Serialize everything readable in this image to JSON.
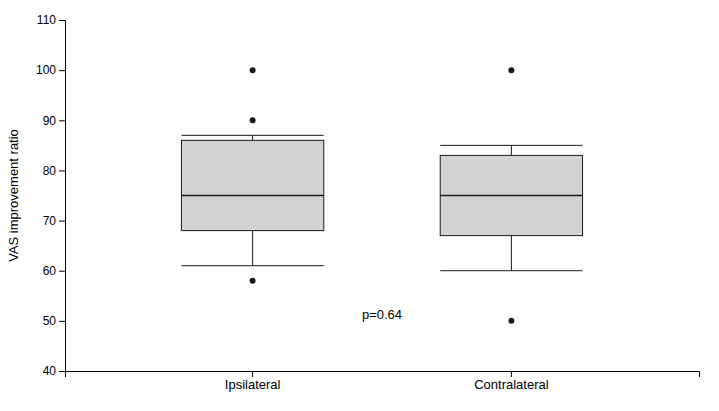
{
  "chart_data": {
    "type": "box",
    "ylabel": "VAS improvement ratio",
    "categories": [
      "Ipsilateral",
      "Contralateral"
    ],
    "boxes": [
      {
        "median": 75,
        "q1": 68,
        "q3": 86,
        "whisker_low": 61,
        "whisker_high": 87,
        "fliers_low": [
          58
        ],
        "fliers_high": [
          90,
          100
        ]
      },
      {
        "median": 75,
        "q1": 67,
        "q3": 83,
        "whisker_low": 60,
        "whisker_high": 85,
        "fliers_low": [
          50
        ],
        "fliers_high": [
          100
        ]
      }
    ],
    "annotations": [
      {
        "text": "p=0.64",
        "y": 51
      }
    ],
    "color": "#d3d3d3",
    "ylim": [
      40,
      110
    ],
    "yticks": [
      40,
      50,
      60,
      70,
      80,
      90,
      100,
      110
    ],
    "grid": false
  }
}
